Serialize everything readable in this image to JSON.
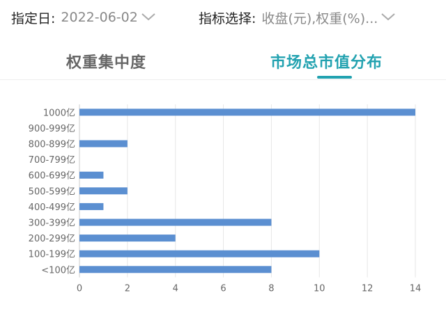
{
  "filters": {
    "date_label": "指定日:",
    "date_value": "2022-06-02",
    "indicator_label": "指标选择:",
    "indicator_value": "收盘(元),权重(%)..."
  },
  "tabs": [
    {
      "label": "权重集中度",
      "active": false
    },
    {
      "label": "市场总市值分布",
      "active": true
    }
  ],
  "colors": {
    "accent": "#22a2b0",
    "bar": "#5b8fd1"
  },
  "chart_data": {
    "type": "bar",
    "orientation": "horizontal",
    "categories": [
      "1000亿",
      "900-999亿",
      "800-899亿",
      "700-799亿",
      "600-699亿",
      "500-599亿",
      "400-499亿",
      "300-399亿",
      "200-299亿",
      "100-199亿",
      "<100亿"
    ],
    "values": [
      14,
      0,
      2,
      0,
      1,
      2,
      1,
      8,
      4,
      10,
      8
    ],
    "xlim": [
      0,
      14
    ],
    "xticks": [
      0,
      2,
      4,
      6,
      8,
      10,
      12,
      14
    ],
    "grid": true
  }
}
